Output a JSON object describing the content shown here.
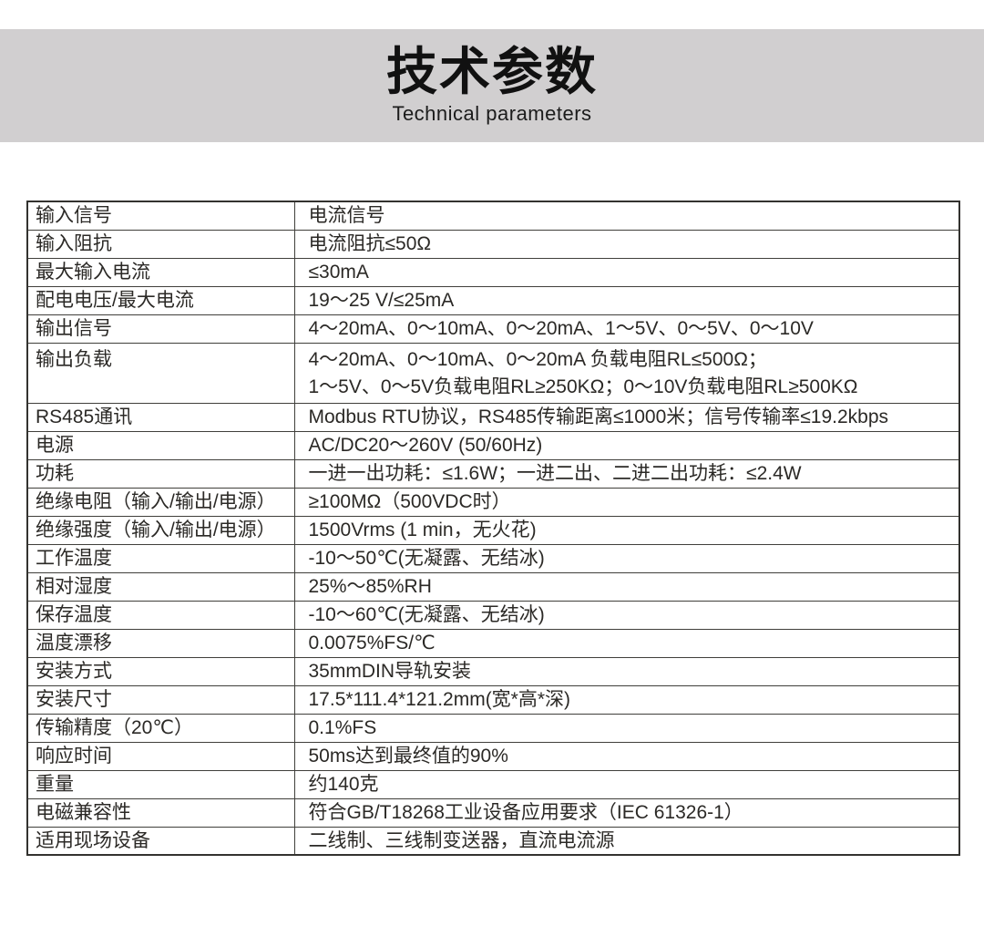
{
  "banner": {
    "title": "技术参数",
    "subtitle": "Technical parameters",
    "background_color": "#d1cfd0",
    "text_color": "#111111"
  },
  "table": {
    "border_color": "#403f3b",
    "rows": [
      {
        "label": "输入信号",
        "value": "电流信号",
        "tall": false
      },
      {
        "label": "输入阻抗",
        "value": "电流阻抗≤50Ω",
        "tall": false
      },
      {
        "label": "最大输入电流",
        "value": "≤30mA",
        "tall": false
      },
      {
        "label": "配电电压/最大电流",
        "value": "19～25 V/≤25mA",
        "tall": false
      },
      {
        "label": "输出信号",
        "value": "4～20mA、0～10mA、0～20mA、1～5V、0～5V、0～10V",
        "tall": false
      },
      {
        "label": "输出负载",
        "value": "4～20mA、0～10mA、0～20mA 负载电阻RL≤500Ω；\n1～5V、0～5V负载电阻RL≥250KΩ；0～10V负载电阻RL≥500KΩ",
        "tall": true
      },
      {
        "label": "RS485通讯",
        "value": "Modbus RTU协议，RS485传输距离≤1000米；信号传输率≤19.2kbps",
        "tall": false
      },
      {
        "label": "电源",
        "value": "AC/DC20～260V (50/60Hz)",
        "tall": false
      },
      {
        "label": "功耗",
        "value": "一进一出功耗：≤1.6W；一进二出、二进二出功耗：≤2.4W",
        "tall": false
      },
      {
        "label": "绝缘电阻（输入/输出/电源）",
        "value": "≥100MΩ（500VDC时）",
        "tall": false
      },
      {
        "label": "绝缘强度（输入/输出/电源）",
        "value": "1500Vrms (1 min，无火花)",
        "tall": false
      },
      {
        "label": "工作温度",
        "value": "-10～50℃(无凝露、无结冰)",
        "tall": false
      },
      {
        "label": "相对湿度",
        "value": "25%～85%RH",
        "tall": false
      },
      {
        "label": "保存温度",
        "value": "-10～60℃(无凝露、无结冰)",
        "tall": false
      },
      {
        "label": "温度漂移",
        "value": "0.0075%FS/℃",
        "tall": false
      },
      {
        "label": "安装方式",
        "value": "35mmDIN导轨安装",
        "tall": false
      },
      {
        "label": "安装尺寸",
        "value": "17.5*111.4*121.2mm(宽*高*深)",
        "tall": false
      },
      {
        "label": "传输精度（20℃）",
        "value": "0.1%FS",
        "tall": false
      },
      {
        "label": "响应时间",
        "value": "50ms达到最终值的90%",
        "tall": false
      },
      {
        "label": "重量",
        "value": "约140克",
        "tall": false
      },
      {
        "label": "电磁兼容性",
        "value": "符合GB/T18268工业设备应用要求（IEC 61326-1）",
        "tall": false
      },
      {
        "label": "适用现场设备",
        "value": "二线制、三线制变送器，直流电流源",
        "tall": false
      }
    ]
  }
}
